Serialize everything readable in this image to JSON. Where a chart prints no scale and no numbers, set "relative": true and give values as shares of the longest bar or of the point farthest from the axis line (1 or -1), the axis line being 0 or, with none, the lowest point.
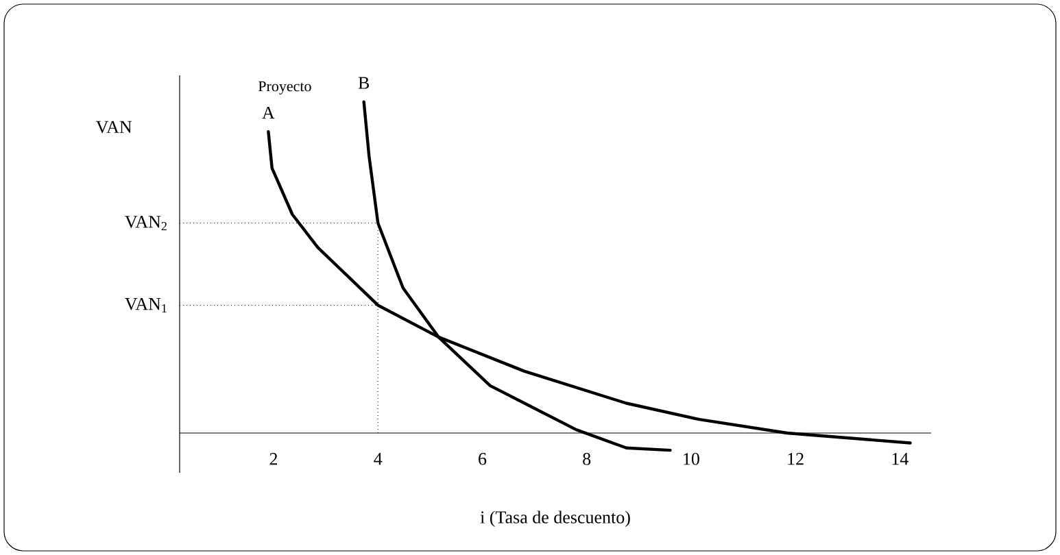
{
  "chart_data": {
    "type": "line",
    "relative": true,
    "xlabel": "i  (Tasa de descuento)",
    "ylabel": "VAN",
    "annotations": [
      "Proyecto"
    ],
    "xlim": [
      0.2,
      14.6
    ],
    "xticks": [
      2,
      4,
      6,
      8,
      10,
      12,
      14
    ],
    "line_style": "solid",
    "series": [
      {
        "name": "A",
        "color": "#000000",
        "x": [
          1.9,
          1.97,
          2.36,
          2.85,
          4,
          5.16,
          6.8,
          8.76,
          10.16,
          11.84,
          14.2
        ],
        "values": [
          0.91,
          0.8,
          0.66,
          0.56,
          0.386,
          0.29,
          0.187,
          0.09,
          0.041,
          0,
          -0.03
        ]
      },
      {
        "name": "B",
        "color": "#000000",
        "x": [
          3.73,
          3.83,
          4,
          4.48,
          5.16,
          6.15,
          7.8,
          8.76,
          9.6
        ],
        "values": [
          1,
          0.836,
          0.634,
          0.438,
          0.29,
          0.143,
          0.01,
          -0.045,
          -0.052
        ]
      }
    ],
    "ref_lines": [
      {
        "axis": "y",
        "value": 0.634,
        "label": "VAN$_{2}$",
        "line_style": "dotted"
      },
      {
        "axis": "y",
        "value": 0.386,
        "label": "VAN$_{1}$",
        "line_style": "dotted"
      },
      {
        "axis": "x",
        "value": 4,
        "line_style": "dotted"
      }
    ]
  }
}
